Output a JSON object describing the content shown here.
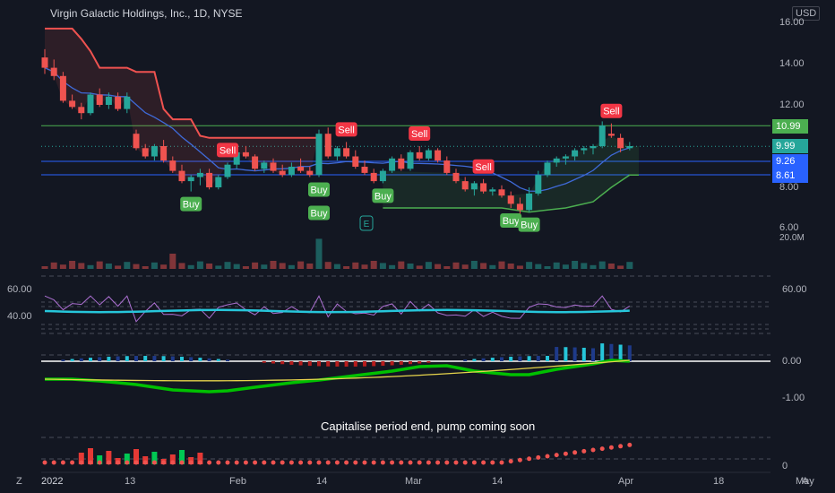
{
  "header": {
    "title": "Virgin Galactic Holdings, Inc., 1D, NYSE",
    "currency": "USD"
  },
  "colors": {
    "up": "#26a69a",
    "down": "#ef5350",
    "background": "#131722",
    "buy": "#4caf50",
    "sell": "#f23645",
    "level_green": "#4caf50",
    "level_blue": "#2962ff",
    "ma_blue": "#3f6ad8",
    "rsi": "#ab6fd1",
    "rsi_ma": "#26c6da",
    "wave": "#00c000",
    "wave_down": "#c00000",
    "signal": "#e6d44c"
  },
  "price_axis": [
    "16.00",
    "14.00",
    "12.00",
    "10.00",
    "8.00",
    "6.00",
    "20.0M"
  ],
  "price_tags": [
    {
      "value": "10.99",
      "price": 10.99,
      "color": "#4caf50"
    },
    {
      "value": "9.99",
      "price": 9.99,
      "color": "#26a69a"
    },
    {
      "value": "9.26",
      "price": 9.26,
      "color": "#2962ff"
    },
    {
      "value": "8.61",
      "price": 8.61,
      "color": "#2962ff"
    }
  ],
  "rsi_axis": {
    "left": [
      "60.00",
      "40.00"
    ],
    "right": [
      "60.00"
    ]
  },
  "osc_axis": [
    "0.00",
    "-1.00"
  ],
  "bottom_axis": [
    "0"
  ],
  "time_axis": [
    "2022",
    "13",
    "Feb",
    "14",
    "Mar",
    "14",
    "Apr",
    "18",
    "May"
  ],
  "corner_labels": {
    "left": "Z",
    "right": "A"
  },
  "annotation": "Capitalise period end, pump coming soon",
  "logo_letter": "E",
  "chart_data": {
    "type": "candlestick",
    "title": "Virgin Galactic Holdings, Inc., 1D, NYSE",
    "ylim": [
      6,
      16
    ],
    "candles": [
      [
        14.3,
        14.7,
        13.5,
        13.8
      ],
      [
        13.8,
        14.2,
        13.2,
        13.4
      ],
      [
        13.4,
        13.6,
        12.1,
        12.2
      ],
      [
        12.2,
        12.5,
        11.8,
        11.9
      ],
      [
        11.9,
        12.1,
        11.3,
        11.6
      ],
      [
        11.6,
        12.6,
        11.5,
        12.5
      ],
      [
        12.5,
        12.8,
        11.9,
        12.0
      ],
      [
        12.0,
        12.6,
        11.8,
        12.4
      ],
      [
        12.4,
        12.6,
        11.7,
        11.8
      ],
      [
        11.8,
        12.6,
        11.6,
        12.4
      ],
      [
        10.6,
        10.8,
        9.8,
        9.9
      ],
      [
        9.9,
        10.1,
        9.4,
        9.5
      ],
      [
        9.5,
        10.1,
        9.3,
        10.0
      ],
      [
        10.0,
        10.3,
        9.2,
        9.3
      ],
      [
        9.3,
        9.5,
        8.7,
        8.8
      ],
      [
        8.8,
        9.1,
        8.2,
        8.3
      ],
      [
        8.3,
        8.6,
        7.8,
        8.5
      ],
      [
        8.5,
        8.9,
        8.1,
        8.7
      ],
      [
        8.7,
        8.9,
        7.9,
        8.0
      ],
      [
        8.0,
        8.6,
        7.9,
        8.5
      ],
      [
        8.5,
        9.2,
        8.4,
        9.1
      ],
      [
        9.1,
        9.8,
        8.9,
        9.7
      ],
      [
        9.7,
        10.0,
        9.4,
        9.5
      ],
      [
        9.5,
        9.6,
        8.8,
        8.9
      ],
      [
        8.9,
        9.3,
        8.7,
        9.2
      ],
      [
        9.2,
        9.4,
        8.7,
        8.8
      ],
      [
        8.8,
        9.1,
        8.5,
        8.6
      ],
      [
        8.6,
        9.2,
        8.5,
        9.0
      ],
      [
        9.0,
        9.4,
        8.7,
        8.8
      ],
      [
        8.8,
        9.0,
        8.5,
        8.6
      ],
      [
        8.6,
        10.8,
        8.5,
        10.6
      ],
      [
        10.6,
        10.9,
        9.4,
        9.5
      ],
      [
        9.5,
        10.0,
        9.3,
        9.9
      ],
      [
        9.9,
        10.2,
        9.4,
        9.5
      ],
      [
        9.5,
        9.8,
        8.9,
        9.0
      ],
      [
        9.0,
        9.3,
        8.6,
        8.7
      ],
      [
        8.7,
        8.9,
        8.2,
        8.3
      ],
      [
        8.3,
        8.9,
        8.2,
        8.8
      ],
      [
        8.8,
        9.5,
        8.7,
        9.4
      ],
      [
        9.4,
        9.6,
        8.8,
        8.9
      ],
      [
        8.9,
        9.8,
        8.8,
        9.7
      ],
      [
        9.7,
        10.0,
        9.3,
        9.4
      ],
      [
        9.4,
        9.9,
        9.3,
        9.8
      ],
      [
        9.8,
        9.9,
        9.2,
        9.3
      ],
      [
        9.3,
        9.5,
        8.6,
        8.7
      ],
      [
        8.7,
        8.9,
        8.2,
        8.3
      ],
      [
        8.3,
        8.5,
        7.8,
        7.9
      ],
      [
        7.9,
        8.3,
        7.6,
        8.2
      ],
      [
        8.2,
        8.4,
        7.7,
        7.8
      ],
      [
        7.8,
        8.0,
        7.6,
        7.9
      ],
      [
        7.9,
        8.1,
        7.5,
        7.6
      ],
      [
        7.6,
        7.8,
        7.0,
        7.2
      ],
      [
        7.2,
        7.5,
        6.6,
        6.9
      ],
      [
        6.9,
        8.0,
        6.8,
        7.7
      ],
      [
        7.7,
        8.8,
        7.6,
        8.6
      ],
      [
        8.6,
        9.3,
        8.5,
        9.2
      ],
      [
        9.2,
        9.5,
        9.0,
        9.4
      ],
      [
        9.4,
        9.6,
        9.1,
        9.5
      ],
      [
        9.5,
        9.9,
        9.3,
        9.8
      ],
      [
        9.8,
        10.0,
        9.6,
        9.9
      ],
      [
        9.9,
        10.1,
        9.6,
        10.0
      ],
      [
        10.0,
        11.2,
        9.9,
        11.0
      ],
      [
        10.6,
        11.1,
        10.4,
        10.5
      ],
      [
        10.4,
        10.6,
        9.7,
        9.9
      ],
      [
        9.9,
        10.2,
        9.8,
        10.0
      ]
    ],
    "volume_scale": "20.0M",
    "signals": [
      {
        "type": "Buy",
        "index": 16
      },
      {
        "type": "Sell",
        "index": 20
      },
      {
        "type": "Buy",
        "index": 30
      },
      {
        "type": "Buy",
        "index": 30
      },
      {
        "type": "Sell",
        "index": 33
      },
      {
        "type": "Buy",
        "index": 37
      },
      {
        "type": "Sell",
        "index": 41
      },
      {
        "type": "Sell",
        "index": 48
      },
      {
        "type": "Buy",
        "index": 51
      },
      {
        "type": "Buy",
        "index": 53
      },
      {
        "type": "Sell",
        "index": 62
      }
    ],
    "levels": [
      {
        "value": 10.99,
        "color": "#4caf50"
      },
      {
        "value": 9.26,
        "color": "#2962ff"
      },
      {
        "value": 8.61,
        "color": "#2962ff"
      }
    ],
    "last_price": 9.99,
    "rsi": {
      "ylim": [
        30,
        70
      ],
      "levels": [
        60,
        50,
        40
      ]
    },
    "oscillator": {
      "ylim": [
        -1.4,
        0.3
      ]
    }
  }
}
